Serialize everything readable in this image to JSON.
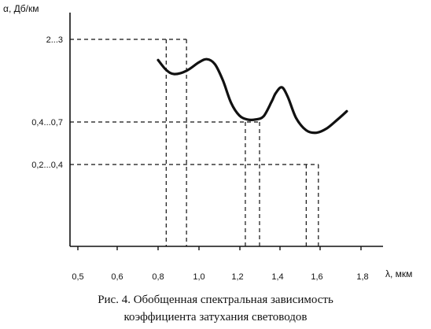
{
  "chart_data": {
    "type": "line",
    "ylabel": "α, Дб/км",
    "xlabel": "λ, мкм",
    "x_ticks": [
      "0,5",
      "0,6",
      "0,8",
      "1,0",
      "1,2",
      "1,4",
      "1,6",
      "1,8"
    ],
    "y_ticks": [
      "2...3",
      "0,4...0,7",
      "0,2...0,4"
    ],
    "series": [
      {
        "x": [
          0.8,
          0.84,
          0.88,
          0.94,
          1.0,
          1.04,
          1.08,
          1.12,
          1.16,
          1.2,
          1.24,
          1.28,
          1.32,
          1.36,
          1.38,
          1.41,
          1.44,
          1.48,
          1.53,
          1.58,
          1.63,
          1.68,
          1.73
        ],
        "y": [
          0.75,
          0.63,
          0.58,
          0.62,
          0.72,
          0.76,
          0.7,
          0.5,
          0.23,
          0.08,
          0.03,
          0.03,
          0.07,
          0.25,
          0.35,
          0.42,
          0.3,
          0.05,
          -0.1,
          -0.13,
          -0.08,
          0.02,
          0.13
        ]
      }
    ],
    "markers": [
      {
        "x": [
          0.84,
          0.94
        ],
        "y_label": "2...3"
      },
      {
        "x": [
          1.23,
          1.3
        ],
        "y_label": "0,4...0,7"
      },
      {
        "x": [
          1.53,
          1.59
        ],
        "y_label": "0,2...0,4"
      }
    ]
  },
  "caption": {
    "line1": "Рис. 4. Обобщенная спектральная зависимость",
    "line2": "коэффициента затухания световодов"
  }
}
